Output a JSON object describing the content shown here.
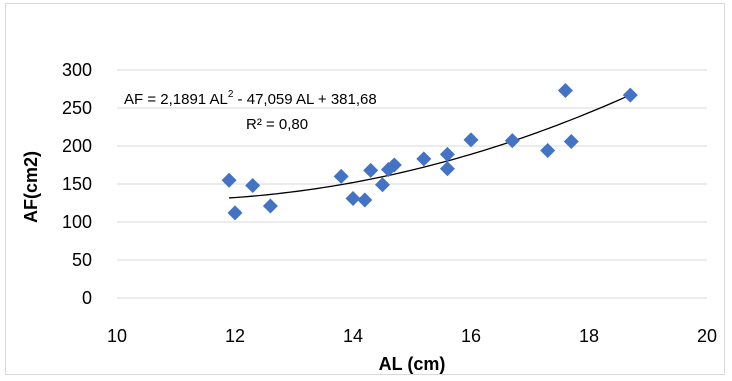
{
  "chart_data": {
    "type": "scatter",
    "xlabel": "AL (cm)",
    "ylabel": "AF(cm2)",
    "xlim": [
      10,
      20
    ],
    "ylim": [
      0,
      300
    ],
    "xticks": [
      10,
      12,
      14,
      16,
      18,
      20
    ],
    "yticks": [
      0,
      50,
      100,
      150,
      200,
      250,
      300
    ],
    "grid": "horizontal",
    "marker": "diamond",
    "marker_color": "#4472c4",
    "trendline": {
      "type": "polynomial",
      "coefficients": [
        2.1891,
        -47.059,
        381.68
      ],
      "x_range": [
        11.9,
        18.7
      ],
      "color": "#000000"
    },
    "equation_label": {
      "prefix": "AF = 2,1891 AL",
      "superscript": "2",
      "suffix": " - 47,059 AL + 381,68"
    },
    "r2_label": "R² = 0,80",
    "series": [
      {
        "points": [
          [
            11.9,
            155
          ],
          [
            12.0,
            112
          ],
          [
            12.3,
            148
          ],
          [
            12.6,
            121
          ],
          [
            13.8,
            160
          ],
          [
            14.0,
            131
          ],
          [
            14.2,
            129
          ],
          [
            14.3,
            168
          ],
          [
            14.5,
            149
          ],
          [
            14.6,
            169
          ],
          [
            14.7,
            175
          ],
          [
            15.2,
            183
          ],
          [
            15.6,
            170
          ],
          [
            15.6,
            189
          ],
          [
            16.0,
            208
          ],
          [
            16.7,
            207
          ],
          [
            17.3,
            194
          ],
          [
            17.6,
            273
          ],
          [
            17.7,
            206
          ],
          [
            18.7,
            267
          ]
        ]
      }
    ]
  }
}
